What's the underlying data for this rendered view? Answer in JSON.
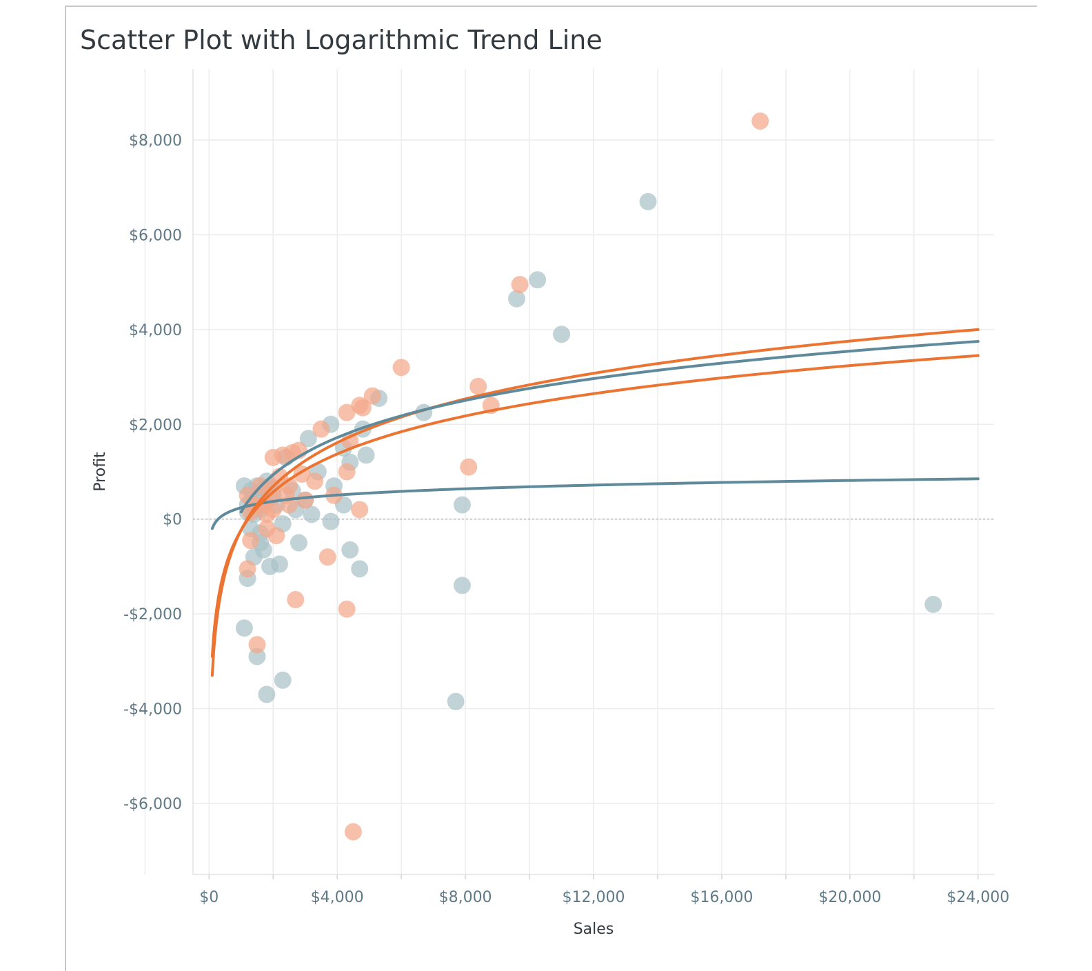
{
  "chart_data": {
    "type": "scatter",
    "title": "Scatter Plot with Logarithmic Trend Line",
    "xlabel": "Sales",
    "ylabel": "Profit",
    "xlim": [
      -500,
      24500
    ],
    "ylim": [
      -7500,
      9500
    ],
    "x_ticks": [
      0,
      4000,
      8000,
      12000,
      16000,
      20000,
      24000
    ],
    "x_tick_labels": [
      "$0",
      "$4,000",
      "$8,000",
      "$12,000",
      "$16,000",
      "$20,000",
      "$24,000"
    ],
    "y_ticks": [
      -6000,
      -4000,
      -2000,
      0,
      2000,
      4000,
      6000,
      8000
    ],
    "y_tick_labels": [
      "-$6,000",
      "-$4,000",
      "-$2,000",
      "$0",
      "$2,000",
      "$4,000",
      "$6,000",
      "$8,000"
    ],
    "grid": true,
    "zero_line": true,
    "colors": {
      "blue": "#5f8a9b",
      "orange": "#ec7432",
      "blue_point": "#a9c2c8",
      "orange_point": "#f3a78a"
    },
    "series": [
      {
        "color": "blue",
        "points": [
          [
            13700,
            6700
          ],
          [
            10250,
            5050
          ],
          [
            9600,
            4650
          ],
          [
            11000,
            3900
          ],
          [
            6700,
            2250
          ],
          [
            5300,
            2550
          ],
          [
            4800,
            1900
          ],
          [
            3800,
            2000
          ],
          [
            4900,
            1350
          ],
          [
            4400,
            1200
          ],
          [
            3100,
            1700
          ],
          [
            4200,
            1500
          ],
          [
            2400,
            1300
          ],
          [
            3400,
            1000
          ],
          [
            3900,
            700
          ],
          [
            4200,
            300
          ],
          [
            7900,
            300
          ],
          [
            3800,
            -50
          ],
          [
            3200,
            100
          ],
          [
            2300,
            -100
          ],
          [
            2800,
            -500
          ],
          [
            1300,
            -200
          ],
          [
            1600,
            -500
          ],
          [
            1700,
            -650
          ],
          [
            1400,
            -800
          ],
          [
            1900,
            -1000
          ],
          [
            2200,
            -950
          ],
          [
            1200,
            -1250
          ],
          [
            4400,
            -650
          ],
          [
            4700,
            -1050
          ],
          [
            7900,
            -1400
          ],
          [
            1100,
            -2300
          ],
          [
            1500,
            -2900
          ],
          [
            2300,
            -3400
          ],
          [
            1800,
            -3700
          ],
          [
            7700,
            -3850
          ],
          [
            22600,
            -1800
          ],
          [
            1200,
            300
          ],
          [
            1300,
            600
          ],
          [
            1500,
            700
          ],
          [
            1700,
            400
          ],
          [
            1600,
            200
          ],
          [
            1400,
            100
          ],
          [
            2000,
            500
          ],
          [
            1800,
            800
          ],
          [
            1500,
            500
          ],
          [
            1350,
            400
          ],
          [
            1700,
            600
          ],
          [
            2100,
            300
          ],
          [
            1900,
            700
          ],
          [
            1200,
            150
          ],
          [
            1600,
            -300
          ],
          [
            2600,
            600
          ],
          [
            2700,
            200
          ],
          [
            3000,
            400
          ],
          [
            1100,
            700
          ]
        ],
        "trend": {
          "type": "logarithmic",
          "y_at_x": [
            [
              100,
              -200
            ],
            [
              1000,
              250
            ],
            [
              24000,
              850
            ]
          ]
        }
      },
      {
        "color": "orange",
        "points": [
          [
            17200,
            8400
          ],
          [
            9700,
            4950
          ],
          [
            6000,
            3200
          ],
          [
            8400,
            2800
          ],
          [
            8800,
            2400
          ],
          [
            5100,
            2600
          ],
          [
            4800,
            2350
          ],
          [
            4700,
            2400
          ],
          [
            4300,
            2250
          ],
          [
            3500,
            1900
          ],
          [
            4400,
            1650
          ],
          [
            2800,
            1450
          ],
          [
            2600,
            1400
          ],
          [
            2300,
            1350
          ],
          [
            2000,
            1300
          ],
          [
            4300,
            1000
          ],
          [
            3300,
            800
          ],
          [
            3900,
            500
          ],
          [
            4700,
            200
          ],
          [
            8100,
            1100
          ],
          [
            3000,
            400
          ],
          [
            2500,
            300
          ],
          [
            2000,
            200
          ],
          [
            1800,
            -200
          ],
          [
            1300,
            -450
          ],
          [
            2100,
            -350
          ],
          [
            3700,
            -800
          ],
          [
            2700,
            -1700
          ],
          [
            4300,
            -1900
          ],
          [
            1200,
            -1050
          ],
          [
            1500,
            -2650
          ],
          [
            4500,
            -6600
          ],
          [
            1200,
            500
          ],
          [
            1400,
            300
          ],
          [
            1600,
            700
          ],
          [
            1800,
            100
          ],
          [
            2000,
            650
          ],
          [
            2200,
            900
          ],
          [
            2400,
            500
          ],
          [
            1300,
            150
          ],
          [
            1700,
            300
          ],
          [
            1900,
            450
          ],
          [
            2500,
            700
          ],
          [
            2900,
            950
          ]
        ],
        "trend": {
          "type": "logarithmic",
          "y_at_x": [
            [
              100,
              -3300
            ],
            [
              24000,
              4000
            ]
          ]
        }
      },
      {
        "color": "orange",
        "trend": {
          "type": "logarithmic",
          "y_at_x": [
            [
              100,
              -2900
            ],
            [
              24000,
              3450
            ]
          ]
        }
      },
      {
        "color": "blue",
        "trend": {
          "type": "logarithmic",
          "y_at_x": [
            [
              1000,
              150
            ],
            [
              24000,
              3750
            ]
          ]
        }
      }
    ]
  }
}
